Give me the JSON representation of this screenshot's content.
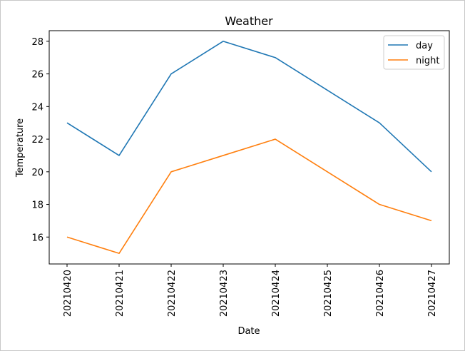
{
  "chart_data": {
    "type": "line",
    "title": "Weather",
    "xlabel": "Date",
    "ylabel": "Temperature",
    "categories": [
      "20210420",
      "20210421",
      "20210422",
      "20210423",
      "20210424",
      "20210425",
      "20210426",
      "20210427"
    ],
    "series": [
      {
        "name": "day",
        "color": "#1f77b4",
        "values": [
          23,
          21,
          26,
          28,
          27,
          25,
          23,
          20
        ]
      },
      {
        "name": "night",
        "color": "#ff7f0e",
        "values": [
          16,
          15,
          20,
          21,
          22,
          20,
          18,
          17
        ]
      }
    ],
    "ylim": [
      14.35,
      28.65
    ],
    "yticks": [
      16,
      18,
      20,
      22,
      24,
      26,
      28
    ],
    "grid": false,
    "legend": "top-right",
    "x_tick_rotation": "vertical"
  }
}
